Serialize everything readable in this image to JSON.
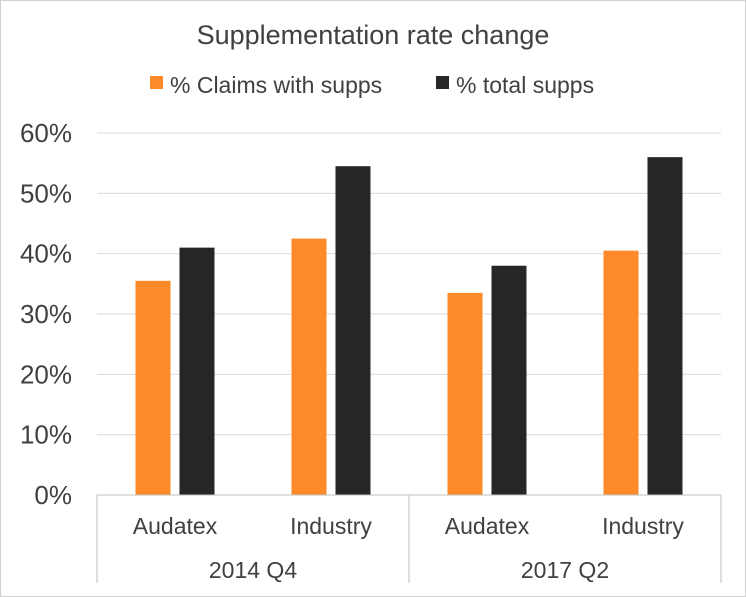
{
  "colors": {
    "claims": "#FF8A2A",
    "total": "#262626",
    "grid": "#D9D9D9",
    "axis": "#BFBFBF",
    "text": "#404040",
    "border": "#D0D0D0"
  },
  "chart_data": {
    "type": "bar",
    "title": "Supplementation rate change",
    "legend_position": "top",
    "grid": true,
    "ylim": [
      0,
      0.6
    ],
    "yticks": [
      {
        "value": 0,
        "label": "0%"
      },
      {
        "value": 0.1,
        "label": "10%"
      },
      {
        "value": 0.2,
        "label": "20%"
      },
      {
        "value": 0.3,
        "label": "30%"
      },
      {
        "value": 0.4,
        "label": "40%"
      },
      {
        "value": 0.5,
        "label": "50%"
      },
      {
        "value": 0.6,
        "label": "60%"
      }
    ],
    "categories": [
      "Audatex",
      "Industry",
      "Audatex",
      "Industry"
    ],
    "groups": [
      {
        "label": "2014 Q4",
        "categories": [
          "Audatex",
          "Industry"
        ]
      },
      {
        "label": "2017 Q2",
        "categories": [
          "Audatex",
          "Industry"
        ]
      }
    ],
    "series": [
      {
        "name": "% Claims with supps",
        "color_key": "claims",
        "values": [
          0.355,
          0.425,
          0.335,
          0.405
        ]
      },
      {
        "name": "% total supps",
        "color_key": "total",
        "values": [
          0.41,
          0.545,
          0.38,
          0.56
        ]
      }
    ]
  }
}
